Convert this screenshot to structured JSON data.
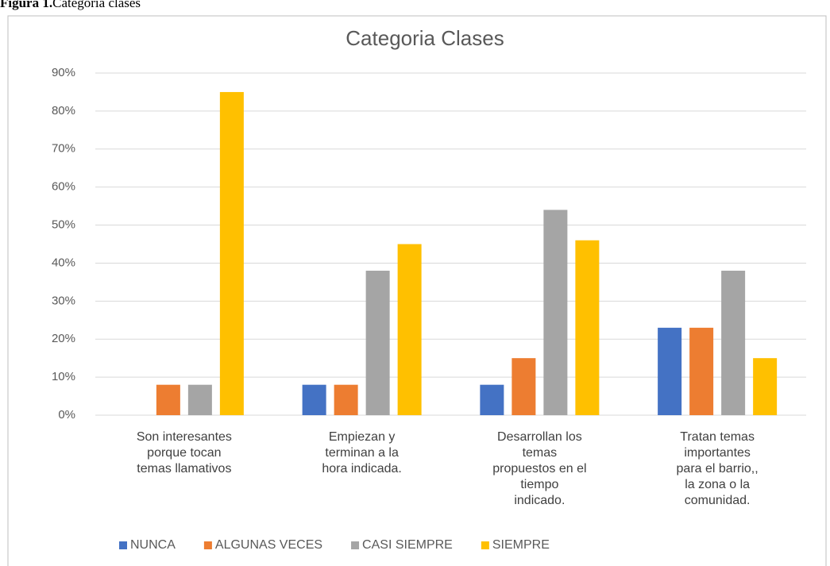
{
  "caption_label": "Figura 1.",
  "caption": "Categoria clases",
  "chart_data": {
    "type": "bar",
    "title": "Categoria Clases",
    "categories": [
      "Son interesantes\nporque tocan\ntemas llamativos",
      "Empiezan y\nterminan a  la\nhora  indicada.",
      "Desarrollan los\ntemas\npropuestos en el\ntiempo\nindicado.",
      "Tratan temas\nimportantes\npara el barrio,,\nla  zona  o  la\ncomunidad."
    ],
    "series": [
      {
        "name": "NUNCA",
        "color": "#4472c4",
        "values": [
          0,
          8,
          8,
          23
        ]
      },
      {
        "name": "ALGUNAS VECES",
        "color": "#ed7d31",
        "values": [
          8,
          8,
          15,
          23
        ]
      },
      {
        "name": "CASI SIEMPRE",
        "color": "#a5a5a5",
        "values": [
          8,
          38,
          54,
          38
        ]
      },
      {
        "name": "SIEMPRE",
        "color": "#ffc000",
        "values": [
          85,
          45,
          46,
          15
        ]
      }
    ],
    "ylim": [
      0,
      90
    ],
    "yticks": [
      {
        "value": 0,
        "label": "0%"
      },
      {
        "value": 10,
        "label": "10%"
      },
      {
        "value": 20,
        "label": "20%"
      },
      {
        "value": 30,
        "label": "30%"
      },
      {
        "value": 40,
        "label": "40%"
      },
      {
        "value": 50,
        "label": "50%"
      },
      {
        "value": 60,
        "label": "60%"
      },
      {
        "value": 70,
        "label": "70%"
      },
      {
        "value": 80,
        "label": "80%"
      },
      {
        "value": 90,
        "label": "90%"
      }
    ],
    "grid": true,
    "legend": "bottom"
  }
}
